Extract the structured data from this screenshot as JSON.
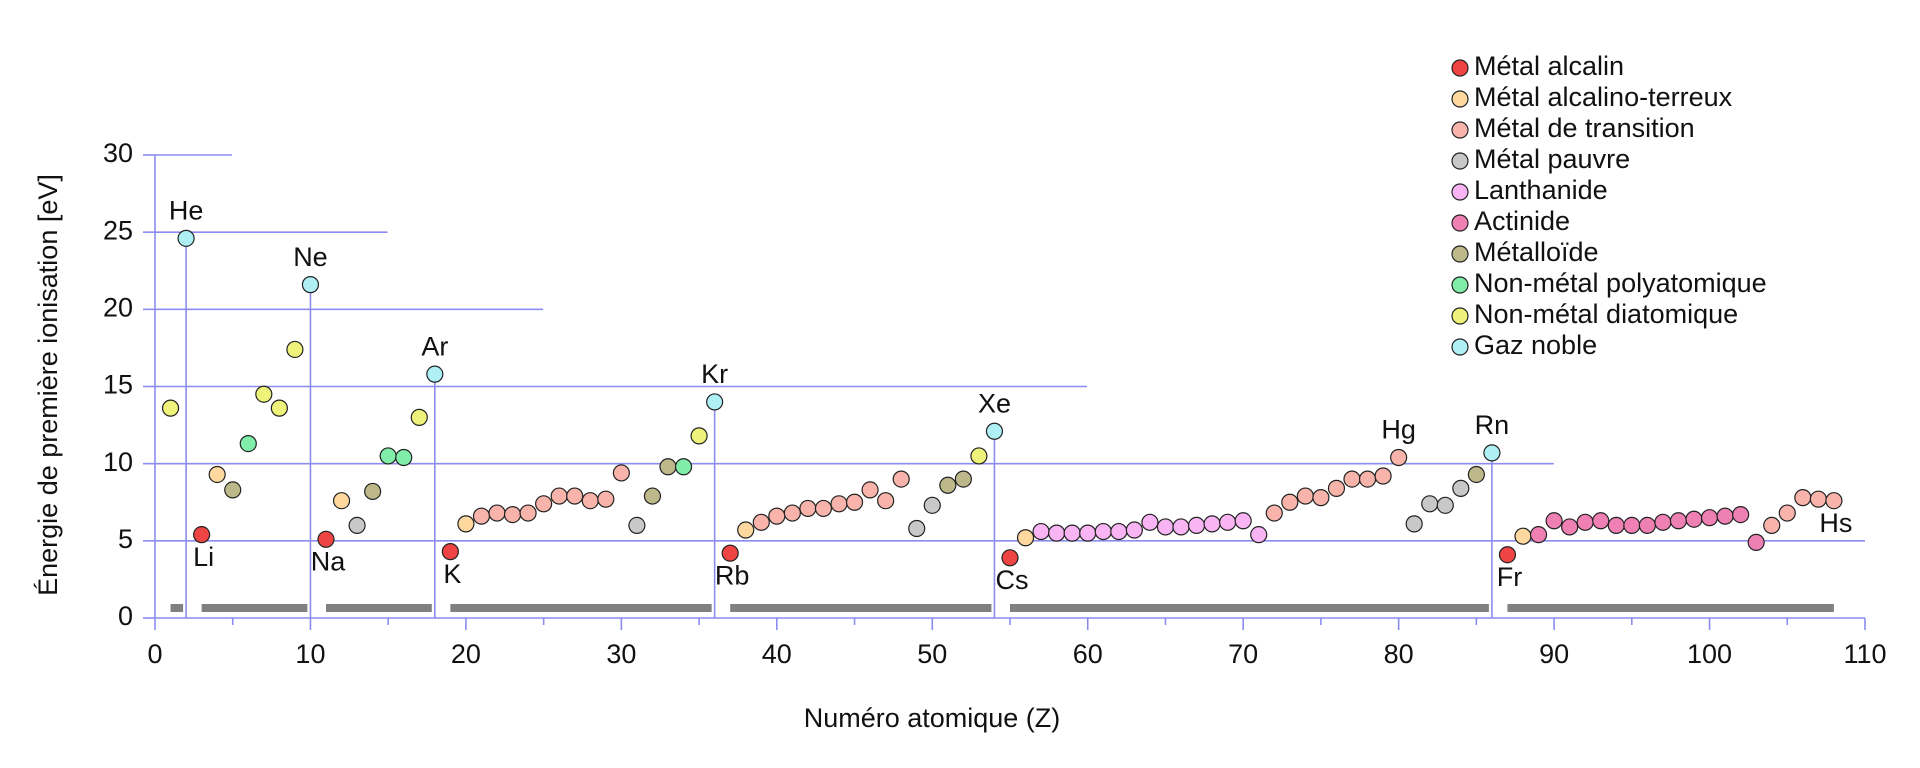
{
  "chart_data": {
    "type": "scatter",
    "x_label": "Numéro atomique (Z)",
    "y_label": "Énergie de première ionisation [eV]",
    "xlim": [
      0,
      110
    ],
    "xticks": [
      0,
      10,
      20,
      30,
      40,
      50,
      60,
      70,
      80,
      90,
      100,
      110
    ],
    "ylim": [
      0,
      30
    ],
    "yticks": [
      0,
      5,
      10,
      15,
      20,
      25,
      30
    ],
    "grid": true,
    "legend": "top-right",
    "series": [
      {
        "name": "Métal alcalin",
        "color": "#ee4444",
        "x": [
          3,
          11,
          19,
          37,
          55,
          87
        ],
        "values": [
          5.4,
          5.1,
          4.3,
          4.2,
          3.9,
          4.1
        ],
        "point_labels": [
          "Li",
          "Na",
          "K",
          "Rb",
          "Cs",
          "Fr"
        ]
      },
      {
        "name": "Métal alcalino-terreux",
        "color": "#ffd8a0",
        "x": [
          4,
          12,
          20,
          38,
          56,
          88
        ],
        "values": [
          9.3,
          7.6,
          6.1,
          5.7,
          5.2,
          5.3
        ]
      },
      {
        "name": "Métal de transition",
        "color": "#f8b4aa",
        "x": [
          21,
          22,
          23,
          24,
          25,
          26,
          27,
          28,
          29,
          30,
          39,
          40,
          41,
          42,
          43,
          44,
          45,
          46,
          47,
          48,
          72,
          73,
          74,
          75,
          76,
          77,
          78,
          79,
          80,
          104,
          105,
          106,
          107,
          108
        ],
        "values": [
          6.6,
          6.8,
          6.7,
          6.8,
          7.4,
          7.9,
          7.9,
          7.6,
          7.7,
          9.4,
          6.2,
          6.6,
          6.8,
          7.1,
          7.1,
          7.4,
          7.5,
          8.3,
          7.6,
          9.0,
          6.8,
          7.5,
          7.9,
          7.8,
          8.4,
          9.0,
          9.0,
          9.2,
          10.4,
          6.0,
          6.8,
          7.8,
          7.7,
          7.6
        ],
        "point_labels": [
          null,
          null,
          null,
          null,
          null,
          null,
          null,
          null,
          null,
          null,
          null,
          null,
          null,
          null,
          null,
          null,
          null,
          null,
          null,
          null,
          null,
          null,
          null,
          null,
          null,
          null,
          null,
          null,
          "Hg",
          null,
          null,
          null,
          null,
          "Hs"
        ]
      },
      {
        "name": "Métal pauvre",
        "color": "#c8c8c8",
        "x": [
          13,
          31,
          49,
          50,
          81,
          82,
          83,
          84
        ],
        "values": [
          6.0,
          6.0,
          5.8,
          7.3,
          6.1,
          7.4,
          7.3,
          8.4
        ]
      },
      {
        "name": "Lanthanide",
        "color": "#f9b4f4",
        "x": [
          57,
          58,
          59,
          60,
          61,
          62,
          63,
          64,
          65,
          66,
          67,
          68,
          69,
          70,
          71
        ],
        "values": [
          5.6,
          5.5,
          5.5,
          5.5,
          5.6,
          5.6,
          5.7,
          6.2,
          5.9,
          5.9,
          6.0,
          6.1,
          6.2,
          6.3,
          5.4
        ]
      },
      {
        "name": "Actinide",
        "color": "#ee80b4",
        "x": [
          89,
          90,
          91,
          92,
          93,
          94,
          95,
          96,
          97,
          98,
          99,
          100,
          101,
          102,
          103
        ],
        "values": [
          5.4,
          6.3,
          5.9,
          6.2,
          6.3,
          6.0,
          6.0,
          6.0,
          6.2,
          6.3,
          6.4,
          6.5,
          6.6,
          6.7,
          4.9
        ]
      },
      {
        "name": "Métalloïde",
        "color": "#bdb88a",
        "x": [
          5,
          14,
          32,
          33,
          51,
          52,
          85
        ],
        "values": [
          8.3,
          8.2,
          7.9,
          9.8,
          8.6,
          9.0,
          9.3
        ]
      },
      {
        "name": "Non-métal polyatomique",
        "color": "#80eea8",
        "x": [
          6,
          15,
          16,
          34
        ],
        "values": [
          11.3,
          10.5,
          10.4,
          9.8
        ]
      },
      {
        "name": "Non-métal diatomique",
        "color": "#eef27a",
        "x": [
          1,
          7,
          8,
          9,
          17,
          35,
          53
        ],
        "values": [
          13.6,
          14.5,
          13.6,
          17.4,
          13.0,
          11.8,
          10.5
        ]
      },
      {
        "name": "Gaz noble",
        "color": "#aef0f4",
        "x": [
          2,
          10,
          18,
          36,
          54,
          86
        ],
        "values": [
          24.6,
          21.6,
          15.8,
          14.0,
          12.1,
          10.7
        ],
        "point_labels": [
          "He",
          "Ne",
          "Ar",
          "Kr",
          "Xe",
          "Rn"
        ]
      }
    ]
  }
}
